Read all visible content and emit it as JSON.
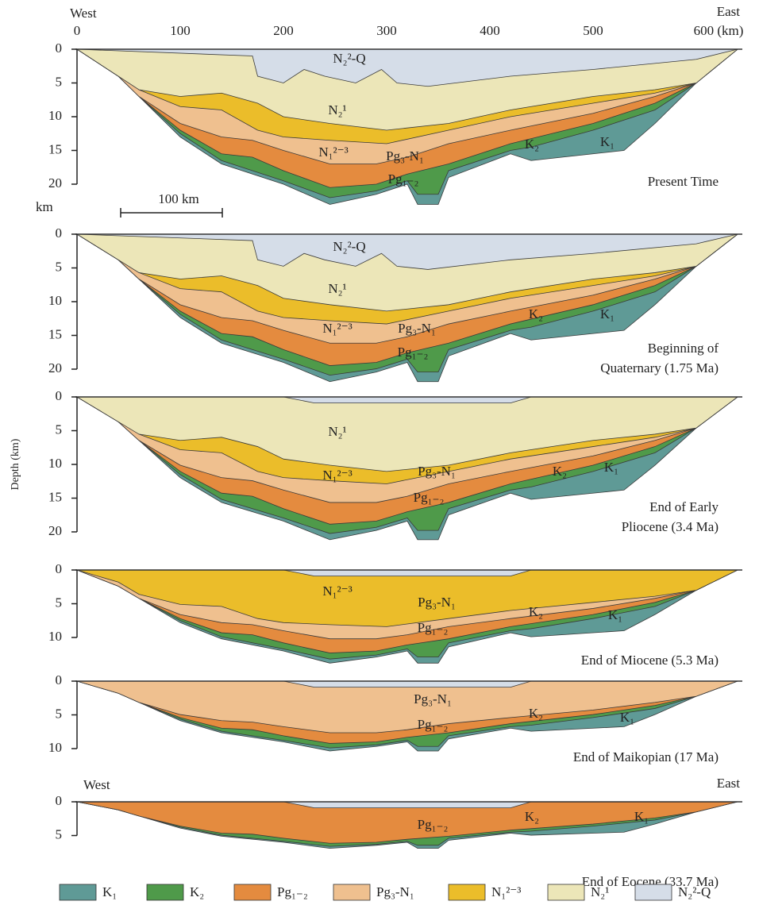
{
  "header": {
    "west": "West",
    "east": "East",
    "x_ticks": [
      "0",
      "100",
      "200",
      "300",
      "400",
      "500",
      "600 (km)"
    ]
  },
  "depth_label": "Depth (km)",
  "km_label": "km",
  "scale_bar": "100 km",
  "panels": [
    {
      "caption": [
        "Present Time"
      ],
      "depth_ticks": [
        "0",
        "5",
        "10",
        "15",
        "20"
      ],
      "labels": [
        "N₂²-Q",
        "N₂¹",
        "N₁²⁻³",
        "Pg₃-N₁",
        "Pg₁₋₂",
        "K₂",
        "K₁"
      ]
    },
    {
      "caption": [
        "Beginning of",
        "Quaternary (1.75 Ma)"
      ],
      "depth_ticks": [
        "0",
        "5",
        "10",
        "15",
        "20"
      ],
      "labels": [
        "N₂²-Q",
        "N₂¹",
        "N₁²⁻³",
        "Pg₃-N₁",
        "Pg₁₋₂",
        "K₂",
        "K₁"
      ]
    },
    {
      "caption": [
        "End of Early",
        "Pliocene (3.4 Ma)"
      ],
      "depth_ticks": [
        "0",
        "5",
        "10",
        "15",
        "20"
      ],
      "labels": [
        "N₂¹",
        "N₁²⁻³",
        "Pg₃-N₁",
        "Pg₁₋₂",
        "K₂",
        "K₁"
      ]
    },
    {
      "caption": [
        "End of Miocene (5.3 Ma)"
      ],
      "depth_ticks": [
        "0",
        "5",
        "10"
      ],
      "labels": [
        "N₁²⁻³",
        "Pg₃-N₁",
        "Pg₁₋₂",
        "K₂",
        "K₁"
      ]
    },
    {
      "caption": [
        "End of Maikopian (17 Ma)"
      ],
      "depth_ticks": [
        "0",
        "5",
        "10"
      ],
      "labels": [
        "Pg₃-N₁",
        "Pg₁₋₂",
        "K₂",
        "K₁"
      ]
    },
    {
      "caption": [
        "End of Eocene (33.7 Ma)"
      ],
      "depth_ticks": [
        "0",
        "5"
      ],
      "labels": [
        "Pg₁₋₂",
        "K₂",
        "K₁"
      ],
      "west": "West",
      "east": "East"
    }
  ],
  "legend": [
    "K₁",
    "K₂",
    "Pg₁₋₂",
    "Pg₃-N₁",
    "N₁²⁻³",
    "N₂¹",
    "N₂²-Q"
  ]
}
